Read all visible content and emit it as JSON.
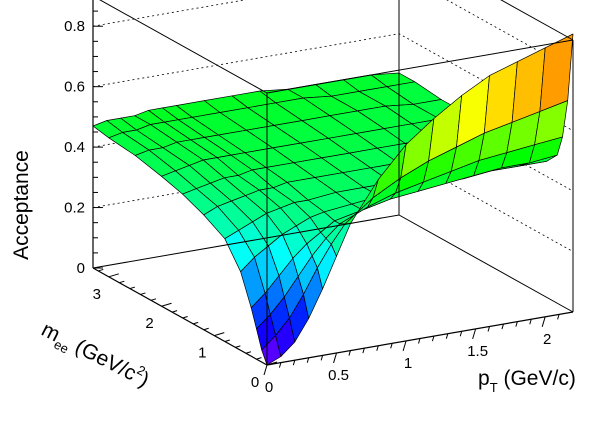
{
  "chart_data": {
    "type": "surface3d",
    "z_axis": {
      "label": "Acceptance",
      "range": [
        0,
        0.9
      ],
      "ticks": [
        "0",
        "0.2",
        "0.4",
        "0.6",
        "0.8"
      ],
      "tick_values": [
        0,
        0.2,
        0.4,
        0.6,
        0.8
      ]
    },
    "x_axis": {
      "label_main": "p",
      "label_sub": "T",
      "label_unit": " (GeV/c)",
      "range": [
        0,
        2.2
      ],
      "ticks": [
        "0",
        "0.5",
        "1",
        "1.5",
        "2"
      ],
      "tick_values": [
        0,
        0.5,
        1,
        1.5,
        2
      ]
    },
    "y_axis": {
      "label_main": "m",
      "label_sub": "ee",
      "label_unit_pre": " (GeV/c",
      "label_sup": "2",
      "label_unit_post": ")",
      "range": [
        0,
        3.3
      ],
      "ticks": [
        "0",
        "1",
        "2",
        "3"
      ],
      "tick_values": [
        0,
        1,
        2,
        3
      ]
    },
    "grid": "dotted back walls",
    "colormap": "rainbow (purple low → red high)",
    "surface": {
      "pt": [
        0.0,
        0.1,
        0.2,
        0.3,
        0.4,
        0.5,
        0.6,
        0.8,
        1.0,
        1.2,
        1.4,
        1.6,
        1.8,
        2.0,
        2.2
      ],
      "mee": [
        0.0,
        0.1,
        0.2,
        0.3,
        0.5,
        0.8,
        1.2,
        1.6,
        2.0,
        2.5,
        3.0,
        3.3
      ],
      "acceptance": [
        [
          0.0,
          0.02,
          0.06,
          0.13,
          0.22,
          0.32,
          0.42,
          0.55,
          0.65,
          0.72,
          0.78,
          0.83,
          0.86,
          0.89,
          0.92
        ],
        [
          0.04,
          0.08,
          0.13,
          0.2,
          0.28,
          0.35,
          0.41,
          0.48,
          0.53,
          0.57,
          0.6,
          0.63,
          0.65,
          0.67,
          0.69
        ],
        [
          0.1,
          0.14,
          0.19,
          0.25,
          0.31,
          0.36,
          0.4,
          0.44,
          0.47,
          0.49,
          0.51,
          0.53,
          0.54,
          0.55,
          0.56
        ],
        [
          0.16,
          0.2,
          0.25,
          0.3,
          0.34,
          0.37,
          0.4,
          0.42,
          0.44,
          0.45,
          0.46,
          0.47,
          0.48,
          0.48,
          0.49
        ],
        [
          0.26,
          0.3,
          0.33,
          0.36,
          0.38,
          0.4,
          0.41,
          0.42,
          0.43,
          0.43,
          0.44,
          0.44,
          0.45,
          0.45,
          0.45
        ],
        [
          0.34,
          0.36,
          0.38,
          0.4,
          0.41,
          0.42,
          0.42,
          0.43,
          0.43,
          0.43,
          0.44,
          0.44,
          0.44,
          0.44,
          0.44
        ],
        [
          0.38,
          0.4,
          0.41,
          0.42,
          0.43,
          0.43,
          0.44,
          0.44,
          0.44,
          0.44,
          0.44,
          0.44,
          0.44,
          0.44,
          0.44
        ],
        [
          0.41,
          0.42,
          0.43,
          0.44,
          0.44,
          0.45,
          0.45,
          0.45,
          0.45,
          0.45,
          0.45,
          0.45,
          0.45,
          0.45,
          0.45
        ],
        [
          0.43,
          0.44,
          0.45,
          0.46,
          0.46,
          0.46,
          0.46,
          0.46,
          0.46,
          0.46,
          0.46,
          0.46,
          0.46,
          0.46,
          0.46
        ],
        [
          0.45,
          0.46,
          0.46,
          0.47,
          0.47,
          0.47,
          0.47,
          0.47,
          0.47,
          0.47,
          0.47,
          0.47,
          0.47,
          0.46,
          0.46
        ],
        [
          0.46,
          0.47,
          0.47,
          0.48,
          0.48,
          0.48,
          0.48,
          0.48,
          0.48,
          0.48,
          0.48,
          0.47,
          0.47,
          0.47,
          0.47
        ],
        [
          0.47,
          0.48,
          0.48,
          0.48,
          0.49,
          0.49,
          0.49,
          0.49,
          0.49,
          0.49,
          0.48,
          0.48,
          0.48,
          0.48,
          0.47
        ]
      ]
    }
  }
}
